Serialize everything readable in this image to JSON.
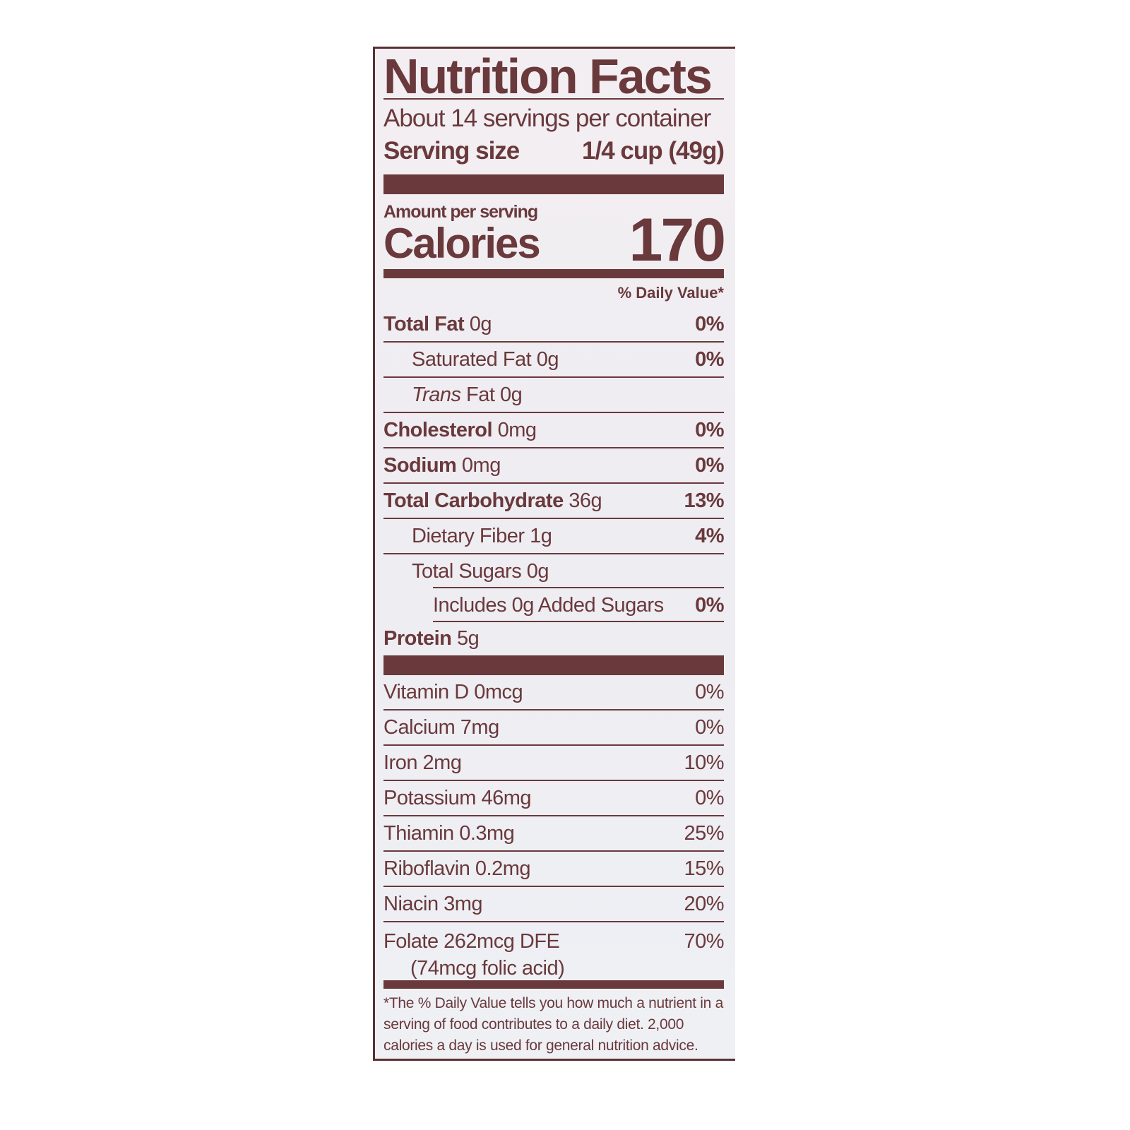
{
  "label": {
    "title": "Nutrition Facts",
    "servings_per_container": "About 14 servings per container",
    "serving_size_label": "Serving size",
    "serving_size_value": "1/4 cup (49g)",
    "amount_per_serving": "Amount per serving",
    "calories_label": "Calories",
    "calories_value": "170",
    "daily_value_header": "% Daily Value*",
    "nutrients": [
      {
        "name": "Total Fat",
        "amount": "0g",
        "dv": "0%"
      },
      {
        "name": "Saturated Fat",
        "amount": "0g",
        "dv": "0%"
      },
      {
        "name": "Trans",
        "name_rest": "Fat",
        "amount": "0g",
        "dv": ""
      },
      {
        "name": "Cholesterol",
        "amount": "0mg",
        "dv": "0%"
      },
      {
        "name": "Sodium",
        "amount": "0mg",
        "dv": "0%"
      },
      {
        "name": "Total Carbohydrate",
        "amount": "36g",
        "dv": "13%"
      },
      {
        "name": "Dietary Fiber",
        "amount": "1g",
        "dv": "4%"
      },
      {
        "name": "Total Sugars",
        "amount": "0g",
        "dv": ""
      },
      {
        "name": "Includes 0g Added Sugars",
        "amount": "",
        "dv": "0%"
      },
      {
        "name": "Protein",
        "amount": "5g",
        "dv": ""
      }
    ],
    "vitamins": [
      {
        "text": "Vitamin D 0mcg",
        "dv": "0%"
      },
      {
        "text": "Calcium 7mg",
        "dv": "0%"
      },
      {
        "text": "Iron 2mg",
        "dv": "10%"
      },
      {
        "text": "Potassium 46mg",
        "dv": "0%"
      },
      {
        "text": "Thiamin 0.3mg",
        "dv": "25%"
      },
      {
        "text": "Riboflavin 0.2mg",
        "dv": "15%"
      },
      {
        "text": "Niacin 3mg",
        "dv": "20%"
      },
      {
        "text": "Folate 262mcg DFE",
        "subtext": "(74mcg folic acid)",
        "dv": "70%"
      }
    ],
    "footnote": "*The % Daily Value tells you how much a nutrient in a serving of food contributes to a daily diet. 2,000 calories a day is used for general nutrition advice.",
    "colors": {
      "ink": "#6a393c",
      "border": "#5b3033",
      "background": "#f1eef2"
    }
  }
}
